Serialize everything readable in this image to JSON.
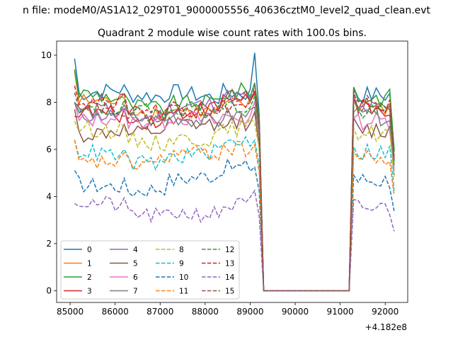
{
  "figure": {
    "suptitle": "n file: modeM0/AS1A12_029T01_9000005556_40636cztM0_level2_quad_clean.evt",
    "title": "Quadrant 2 module wise count rates with 100.0s bins.",
    "offset_label": "+4.182e8"
  },
  "chart_data": {
    "type": "line",
    "title": "Quadrant 2 module wise count rates with 100.0s bins.",
    "xlabel": "",
    "ylabel": "",
    "x_offset": 418200000,
    "xlim": [
      84700,
      92500
    ],
    "ylim": [
      -0.5,
      10.6
    ],
    "xticks": [
      85000,
      86000,
      87000,
      88000,
      89000,
      90000,
      91000,
      92000
    ],
    "yticks": [
      0,
      2,
      4,
      6,
      8,
      10
    ],
    "grid": false,
    "legend": {
      "placement": "lower left",
      "columns": 4
    },
    "series": [
      {
        "name": "0",
        "color": "#1f77b4",
        "style": "solid",
        "level": 8.3,
        "first": 9.85,
        "peak": 10.1
      },
      {
        "name": "1",
        "color": "#ff7f0e",
        "style": "solid",
        "level": 7.8,
        "first": 9.3
      },
      {
        "name": "2",
        "color": "#2ca02c",
        "style": "solid",
        "level": 8.2,
        "first": 9.4
      },
      {
        "name": "3",
        "color": "#d62728",
        "style": "solid",
        "level": 7.7,
        "first": 7.4
      },
      {
        "name": "4",
        "color": "#9467bd",
        "style": "solid",
        "level": 7.7,
        "first": 8.0
      },
      {
        "name": "5",
        "color": "#8c564b",
        "style": "solid",
        "level": 6.8,
        "first": 7.7
      },
      {
        "name": "6",
        "color": "#e377c2",
        "style": "solid",
        "level": 7.2,
        "first": 8.0
      },
      {
        "name": "7",
        "color": "#7f7f7f",
        "style": "solid",
        "level": 7.4,
        "first": 8.0
      },
      {
        "name": "8",
        "color": "#bcbd22",
        "style": "dashed",
        "level": 6.7,
        "first": 7.2
      },
      {
        "name": "9",
        "color": "#17becf",
        "style": "dashed",
        "level": 5.9,
        "first": 6.4
      },
      {
        "name": "10",
        "color": "#1f77b4",
        "style": "dashed",
        "level": 4.7,
        "first": 5.1
      },
      {
        "name": "11",
        "color": "#ff7f0e",
        "style": "dashed",
        "level": 5.6,
        "first": 6.4
      },
      {
        "name": "12",
        "color": "#2ca02c",
        "style": "dashed",
        "level": 7.6,
        "first": 8.0
      },
      {
        "name": "13",
        "color": "#d62728",
        "style": "dashed",
        "level": 7.8,
        "first": 8.7
      },
      {
        "name": "14",
        "color": "#9467bd",
        "style": "dashed",
        "level": 3.5,
        "first": 3.7
      },
      {
        "name": "15",
        "color": "#8c564b",
        "style": "dashed",
        "level": 7.9,
        "first": 8.4
      }
    ],
    "gap": {
      "x_start": 89300,
      "x_end": 91200,
      "value": 0
    },
    "segment1": {
      "x_start": 85100,
      "x_end": 89200
    },
    "segment2": {
      "x_start": 91300,
      "x_end": 92200
    }
  }
}
